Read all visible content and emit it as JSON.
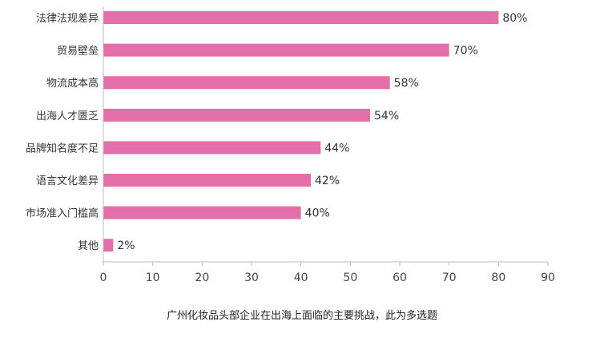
{
  "caption": "广州化妆品头部企业在出海上面临的主要挑战，此为多选题",
  "colors": {
    "bar": "#e36ea8",
    "axis": "#bbbbbb",
    "text": "#333333"
  },
  "chart_data": {
    "type": "bar",
    "orientation": "horizontal",
    "categories": [
      "法律法规差异",
      "贸易壁垒",
      "物流成本高",
      "出海人才匮乏",
      "品牌知名度不足",
      "语言文化差异",
      "市场准入门槛高",
      "其他"
    ],
    "values": [
      80,
      70,
      58,
      54,
      44,
      42,
      40,
      2
    ],
    "data_labels": [
      "80%",
      "70%",
      "58%",
      "54%",
      "44%",
      "42%",
      "40%",
      "2%"
    ],
    "xlim": [
      0,
      90
    ],
    "xticks": [
      0,
      10,
      20,
      30,
      40,
      50,
      60,
      70,
      80,
      90
    ],
    "tick_labels": [
      "0",
      "10",
      "20",
      "30",
      "40",
      "50",
      "60",
      "70",
      "80",
      "90"
    ],
    "grid": false,
    "legend": "none"
  }
}
